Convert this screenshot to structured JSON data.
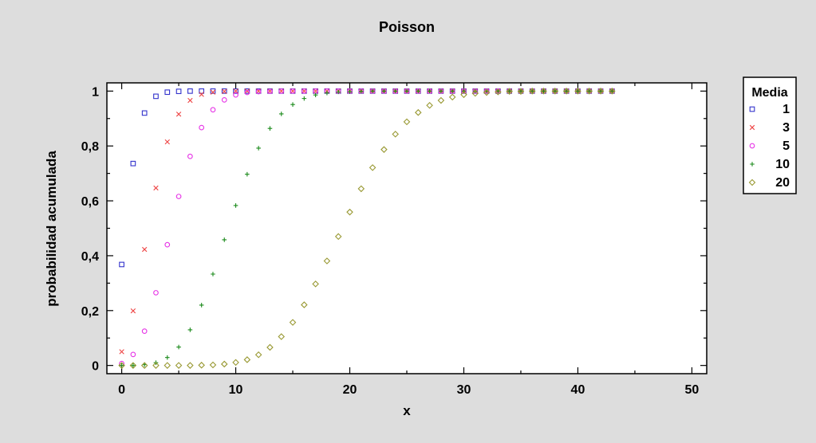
{
  "chart_data": {
    "type": "scatter",
    "title": "Poisson",
    "xlabel": "x",
    "ylabel": "probabilidad acumulada",
    "xlim": [
      -1.3,
      51.3
    ],
    "ylim": [
      -0.03,
      1.03
    ],
    "xticks": [
      0,
      10,
      20,
      30,
      40,
      50
    ],
    "xtick_labels": [
      "0",
      "10",
      "20",
      "30",
      "40",
      "50"
    ],
    "yticks": [
      0,
      0.2,
      0.4,
      0.6,
      0.8,
      1
    ],
    "ytick_labels": [
      "0",
      "0,2",
      "0,4",
      "0,6",
      "0,8",
      "1"
    ],
    "grid": false,
    "legend": {
      "title": "Media",
      "placement": "right"
    },
    "series": [
      {
        "name": "1",
        "marker": "square",
        "color": "#3333cc",
        "x": [
          0,
          1,
          2,
          3,
          4,
          5,
          6,
          7,
          8,
          9,
          10,
          11,
          12,
          13,
          14,
          15,
          16,
          17,
          18,
          19,
          20,
          21,
          22,
          23,
          24,
          25,
          26,
          27,
          28,
          29,
          30,
          31,
          32,
          33,
          34,
          35,
          36,
          37,
          38,
          39,
          40,
          41,
          42,
          43
        ],
        "y": [
          0.368,
          0.736,
          0.92,
          0.981,
          0.996,
          0.999,
          1,
          1,
          1,
          1,
          1,
          1,
          1,
          1,
          1,
          1,
          1,
          1,
          1,
          1,
          1,
          1,
          1,
          1,
          1,
          1,
          1,
          1,
          1,
          1,
          1,
          1,
          1,
          1,
          1,
          1,
          1,
          1,
          1,
          1,
          1,
          1,
          1,
          1
        ]
      },
      {
        "name": "3",
        "marker": "x",
        "color": "#ee4444",
        "x": [
          0,
          1,
          2,
          3,
          4,
          5,
          6,
          7,
          8,
          9,
          10,
          11,
          12,
          13,
          14,
          15,
          16,
          17,
          18,
          19,
          20,
          21,
          22,
          23,
          24,
          25,
          26,
          27,
          28,
          29,
          30,
          31,
          32,
          33,
          34,
          35,
          36,
          37,
          38,
          39,
          40,
          41,
          42,
          43
        ],
        "y": [
          0.05,
          0.199,
          0.423,
          0.647,
          0.815,
          0.916,
          0.966,
          0.988,
          0.996,
          0.999,
          1,
          1,
          1,
          1,
          1,
          1,
          1,
          1,
          1,
          1,
          1,
          1,
          1,
          1,
          1,
          1,
          1,
          1,
          1,
          1,
          1,
          1,
          1,
          1,
          1,
          1,
          1,
          1,
          1,
          1,
          1,
          1,
          1,
          1
        ]
      },
      {
        "name": "5",
        "marker": "circle",
        "color": "#e633e6",
        "x": [
          0,
          1,
          2,
          3,
          4,
          5,
          6,
          7,
          8,
          9,
          10,
          11,
          12,
          13,
          14,
          15,
          16,
          17,
          18,
          19,
          20,
          21,
          22,
          23,
          24,
          25,
          26,
          27,
          28,
          29,
          30,
          31,
          32,
          33,
          34,
          35,
          36,
          37,
          38,
          39,
          40,
          41,
          42,
          43
        ],
        "y": [
          0.007,
          0.04,
          0.125,
          0.265,
          0.44,
          0.616,
          0.762,
          0.867,
          0.932,
          0.968,
          0.986,
          0.995,
          0.998,
          0.999,
          1,
          1,
          1,
          1,
          1,
          1,
          1,
          1,
          1,
          1,
          1,
          1,
          1,
          1,
          1,
          1,
          1,
          1,
          1,
          1,
          1,
          1,
          1,
          1,
          1,
          1,
          1,
          1,
          1,
          1
        ]
      },
      {
        "name": "10",
        "marker": "plus",
        "color": "#1a8a1a",
        "x": [
          0,
          1,
          2,
          3,
          4,
          5,
          6,
          7,
          8,
          9,
          10,
          11,
          12,
          13,
          14,
          15,
          16,
          17,
          18,
          19,
          20,
          21,
          22,
          23,
          24,
          25,
          26,
          27,
          28,
          29,
          30,
          31,
          32,
          33,
          34,
          35,
          36,
          37,
          38,
          39,
          40,
          41,
          42,
          43
        ],
        "y": [
          0,
          0,
          0.003,
          0.01,
          0.029,
          0.067,
          0.13,
          0.22,
          0.333,
          0.458,
          0.583,
          0.697,
          0.792,
          0.864,
          0.917,
          0.951,
          0.973,
          0.986,
          0.993,
          0.997,
          0.998,
          0.999,
          1,
          1,
          1,
          1,
          1,
          1,
          1,
          1,
          1,
          1,
          1,
          1,
          1,
          1,
          1,
          1,
          1,
          1,
          1,
          1,
          1,
          1
        ]
      },
      {
        "name": "20",
        "marker": "diamond",
        "color": "#999933",
        "x": [
          0,
          1,
          2,
          3,
          4,
          5,
          6,
          7,
          8,
          9,
          10,
          11,
          12,
          13,
          14,
          15,
          16,
          17,
          18,
          19,
          20,
          21,
          22,
          23,
          24,
          25,
          26,
          27,
          28,
          29,
          30,
          31,
          32,
          33,
          34,
          35,
          36,
          37,
          38,
          39,
          40,
          41,
          42,
          43
        ],
        "y": [
          0,
          0,
          0,
          0,
          0,
          0,
          0,
          0.001,
          0.002,
          0.005,
          0.011,
          0.021,
          0.039,
          0.066,
          0.105,
          0.157,
          0.221,
          0.297,
          0.381,
          0.47,
          0.559,
          0.644,
          0.721,
          0.787,
          0.843,
          0.888,
          0.922,
          0.948,
          0.966,
          0.978,
          0.987,
          0.992,
          0.995,
          0.997,
          0.999,
          0.999,
          1,
          1,
          1,
          1,
          1,
          1,
          1,
          1
        ]
      }
    ]
  }
}
